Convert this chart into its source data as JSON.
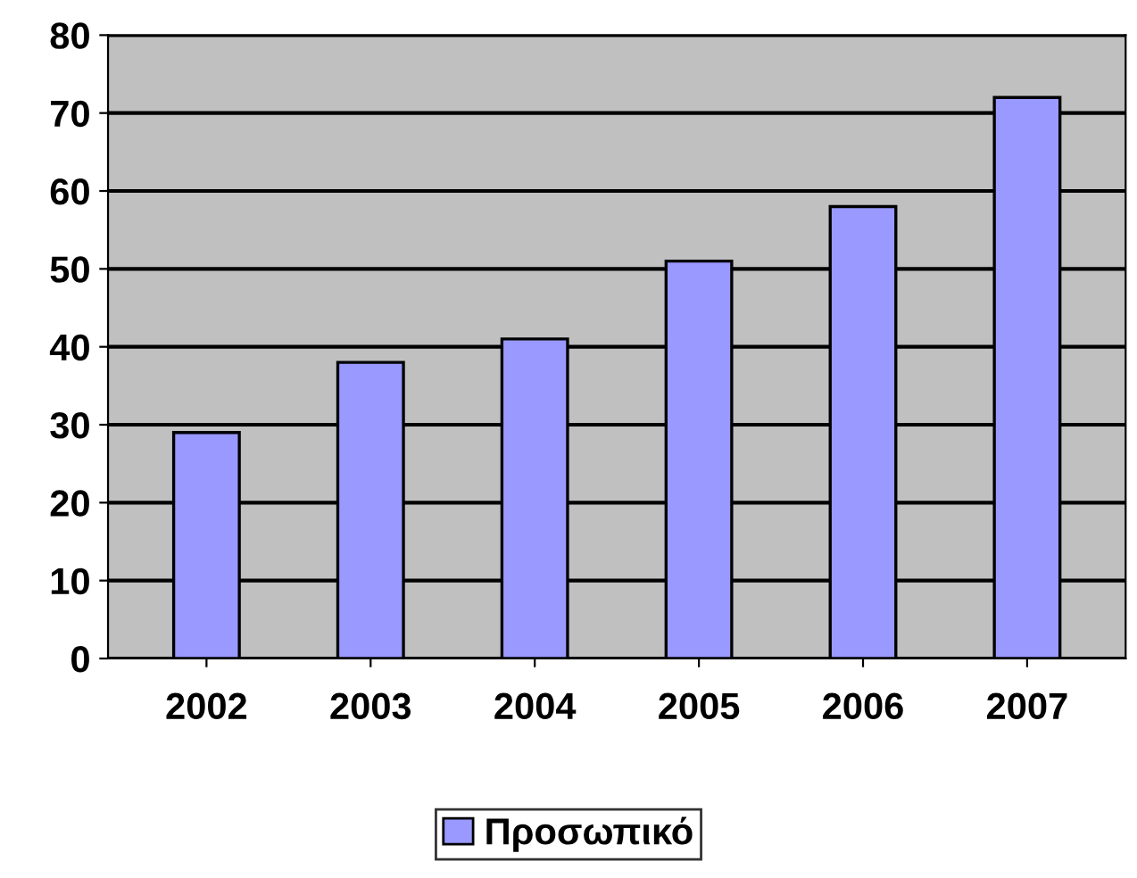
{
  "chart_data": {
    "type": "bar",
    "categories": [
      "2002",
      "2003",
      "2004",
      "2005",
      "2006",
      "2007"
    ],
    "series": [
      {
        "name": "Προσωπικό",
        "color": "#9999ff",
        "values": [
          29,
          38,
          41,
          51,
          58,
          72
        ]
      }
    ],
    "ylim": [
      0,
      80
    ],
    "yticks": [
      0,
      10,
      20,
      30,
      40,
      50,
      60,
      70,
      80
    ],
    "grid": "y",
    "legend": "bottom"
  }
}
